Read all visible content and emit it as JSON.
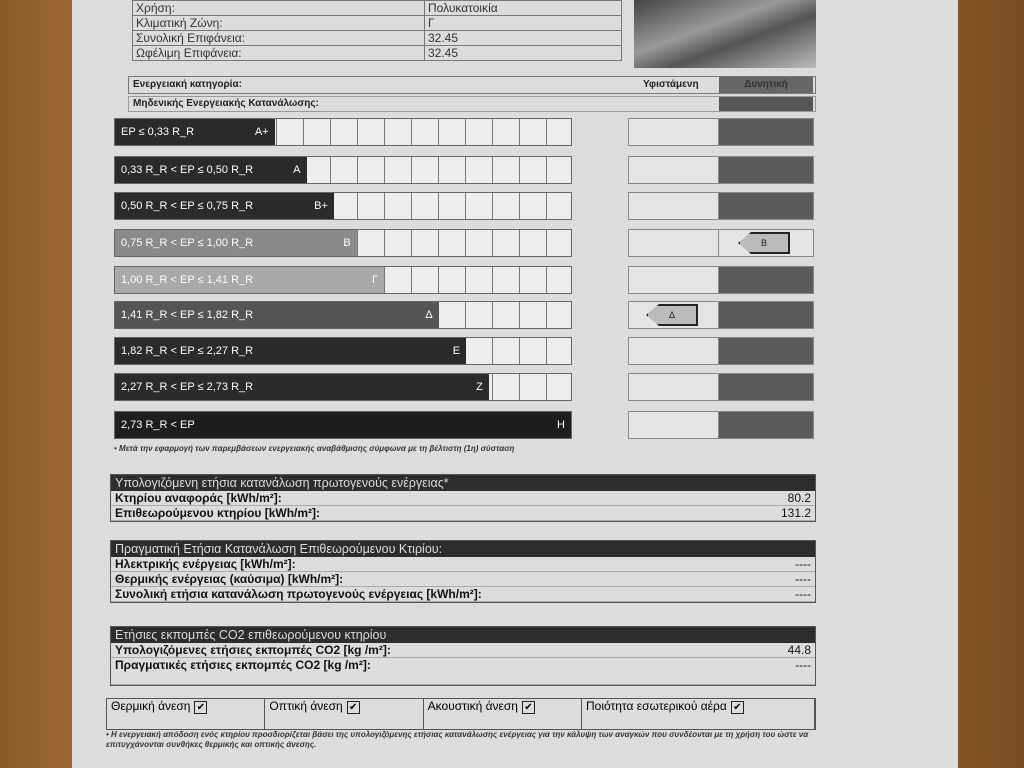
{
  "info": [
    {
      "label": "Χρήση:",
      "value": "Πολυκατοικία"
    },
    {
      "label": "Κλιματική Ζώνη:",
      "value": "Γ"
    },
    {
      "label": "Συνολική Επιφάνεια:",
      "value": "32.45"
    },
    {
      "label": "Ωφέλιμη Επιφάνεια:",
      "value": "32.45"
    }
  ],
  "category": {
    "title": "Ενεργειακή κατηγορία:",
    "existing": "Υφιστάμενη",
    "potential": "Δυνητική",
    "zero": "Μηδενικής Ενεργειακής Κατανάλωσης:"
  },
  "ratings": [
    {
      "range": "EP ≤ 0,33 R_R",
      "label": "A+",
      "color": "#2b2b2b",
      "fill": 0.35
    },
    {
      "range": "0,33 R_R < EP ≤ 0,50 R_R",
      "label": "A",
      "color": "#2b2b2b",
      "fill": 0.42
    },
    {
      "range": "0,50 R_R < EP ≤ 0,75 R_R",
      "label": "B+",
      "color": "#2b2b2b",
      "fill": 0.48
    },
    {
      "range": "0,75 R_R < EP ≤ 1,00 R_R",
      "label": "B",
      "color": "#8a8a8a",
      "fill": 0.53
    },
    {
      "range": "1,00 R_R < EP ≤ 1,41 R_R",
      "label": "Γ",
      "color": "#a8a8a8",
      "fill": 0.59
    },
    {
      "range": "1,41 R_R < EP ≤ 1,82 R_R",
      "label": "Δ",
      "color": "#555555",
      "fill": 0.71
    },
    {
      "range": "1,82 R_R < EP ≤ 2,27 R_R",
      "label": "Ε",
      "color": "#2b2b2b",
      "fill": 0.77
    },
    {
      "range": "2,27 R_R < EP ≤ 2,73 R_R",
      "label": "Ζ",
      "color": "#2b2b2b",
      "fill": 0.82
    },
    {
      "range": "2,73 R_R < EP",
      "label": "Η",
      "color": "#1e1e1e",
      "fill": 1.0
    }
  ],
  "existing_rating": "Δ",
  "potential_rating": "Β",
  "footnote1": "• Μετά την εφαρμογή των παρεμβάσεων ενεργειακής αναβάθμισης σύμφωνα με τη βέλτιστη (1η) σύσταση",
  "calc": {
    "title": "Υπολογιζόμενη ετήσια κατανάλωση πρωτογενούς ενέργειας*",
    "rows": [
      {
        "label": "Κτηρίου αναφοράς [kWh/m²]:",
        "value": "80.2"
      },
      {
        "label": "Επιθεωρούμενου κτηρίου [kWh/m²]:",
        "value": "131.2"
      }
    ]
  },
  "actual": {
    "title": "Πραγματική Ετήσια Κατανάλωση Επιθεωρούμενου Κτιρίου:",
    "rows": [
      {
        "label": "Ηλεκτρικής ενέργειας [kWh/m²]:",
        "value": "----"
      },
      {
        "label": "Θερμικής ενέργειας (καύσιμα) [kWh/m²]:",
        "value": "----"
      },
      {
        "label": "Συνολική ετήσια κατανάλωση πρωτογενούς ενέργειας [kWh/m²]:",
        "value": "----"
      }
    ]
  },
  "co2": {
    "title": "Ετήσιες εκπομπές CO2 επιθεωρούμενου κτηρίου",
    "rows": [
      {
        "label": "Υπολογιζόμενες ετήσιες εκπομπές CO2 [kg /m²]:",
        "value": "44.8"
      },
      {
        "label": "Πραγματικές ετήσιες εκπομπές CO2 [kg /m²]:",
        "value": "----"
      }
    ]
  },
  "comfort": [
    {
      "label": "Θερμική άνεση",
      "checked": true
    },
    {
      "label": "Οπτική άνεση",
      "checked": true
    },
    {
      "label": "Ακουστική άνεση",
      "checked": true
    },
    {
      "label": "Ποιότητα εσωτερικού αέρα",
      "checked": true
    }
  ],
  "footnote2": "• Η ενεργειακή απόδοση ενός κτηρίου προσδιορίζεται βάσει της υπολογιζόμενης ετήσιας κατανάλωσης ενέργειας για την κάλυψη των αναγκών που συνδέονται με τη χρήση του ώστε να επιτυγχάνονται συνθήκες θερμικής και οπτικής άνεσης."
}
